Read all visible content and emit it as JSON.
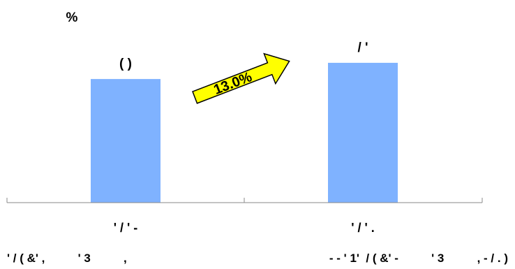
{
  "chart_data": {
    "type": "bar",
    "unit_label": "%",
    "categories": [
      "' / ' -",
      "' / ' ."
    ],
    "sublabels": [
      "' / ( &' ,          ' 3          ,",
      "- - ' 1'  / ( &' -          ' 3          , - / . )"
    ],
    "values_display": [
      "( )",
      "/ '"
    ],
    "values": [
      12.2,
      13.8
    ],
    "ylim": [
      0,
      20
    ],
    "growth_arrow": {
      "label": "13.0%",
      "color": "#ffff00",
      "outline_color": "#000000"
    },
    "colors": {
      "bar": "#7fb2ff",
      "axis": "#888888",
      "text": "#000000"
    },
    "grid": false,
    "legend": "none"
  }
}
